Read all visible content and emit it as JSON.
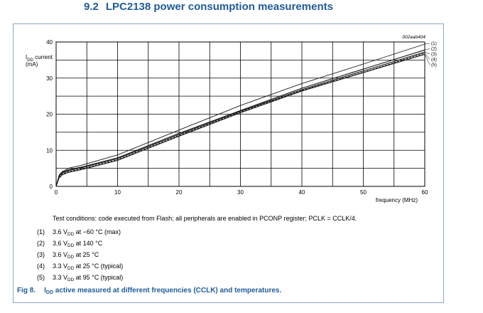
{
  "section": {
    "number": "9.2",
    "title": "LPC2138 power consumption measurements"
  },
  "chart_data": {
    "type": "line",
    "code": "002aab404",
    "ylabel_main": "I",
    "ylabel_sub": "DD",
    "ylabel_rest": " current",
    "ylabel_unit": "(mA)",
    "xlabel": "frequency (MHz)",
    "xlim": [
      0,
      60
    ],
    "ylim": [
      0,
      40
    ],
    "xticks": [
      0,
      10,
      20,
      30,
      40,
      50,
      60
    ],
    "yticks": [
      0,
      10,
      20,
      30,
      40
    ],
    "grid": true,
    "series": [
      {
        "name": "(1)",
        "x": [
          0,
          0.5,
          1,
          2,
          4,
          10,
          20,
          30,
          40,
          50,
          60
        ],
        "values": [
          0,
          3.2,
          4.1,
          5.0,
          5.8,
          8.7,
          15.6,
          22.4,
          28.5,
          33.9,
          39.4
        ]
      },
      {
        "name": "(2)",
        "x": [
          0,
          0.5,
          1,
          2,
          4,
          10,
          20,
          30,
          40,
          50,
          60
        ],
        "values": [
          0,
          3.0,
          3.9,
          4.6,
          5.3,
          7.9,
          14.7,
          21.0,
          27.2,
          32.5,
          37.8
        ]
      },
      {
        "name": "(3)",
        "x": [
          0,
          0.5,
          1,
          2,
          4,
          10,
          20,
          30,
          40,
          50,
          60
        ],
        "values": [
          0,
          2.9,
          3.7,
          4.4,
          5.1,
          7.7,
          14.4,
          20.8,
          26.8,
          32.0,
          37.2
        ]
      },
      {
        "name": "(4)",
        "x": [
          0,
          0.5,
          1,
          2,
          4,
          10,
          20,
          30,
          40,
          50,
          60
        ],
        "values": [
          0,
          2.6,
          3.4,
          4.1,
          4.8,
          7.4,
          14.1,
          20.6,
          26.6,
          31.6,
          36.9
        ]
      },
      {
        "name": "(5)",
        "x": [
          0,
          0.5,
          1,
          2,
          4,
          10,
          20,
          30,
          40,
          50,
          60
        ],
        "values": [
          0,
          2.4,
          3.2,
          3.9,
          4.6,
          7.2,
          13.9,
          20.4,
          26.4,
          31.5,
          36.6
        ]
      }
    ]
  },
  "conditions": "Test conditions: code executed from Flash; all peripherals are enabled in PCONP register; PCLK = CCLK/4.",
  "legend": [
    {
      "id": "(1)",
      "pre": "3.6 V",
      "sub": "DD",
      "post": " at −60 °C (max)"
    },
    {
      "id": "(2)",
      "pre": "3.6 V",
      "sub": "DD",
      "post": " at 140 °C"
    },
    {
      "id": "(3)",
      "pre": "3.6 V",
      "sub": "DD",
      "post": " at 25 °C"
    },
    {
      "id": "(4)",
      "pre": "3.3 V",
      "sub": "DD",
      "post": " at 25 °C (typical)"
    },
    {
      "id": "(5)",
      "pre": "3.3 V",
      "sub": "DD",
      "post": " at 95 °C (typical)"
    }
  ],
  "caption": {
    "fig": "Fig 8.",
    "pre": "I",
    "sub": "DD",
    "post": " active measured at different frequencies (CCLK) and temperatures."
  },
  "colors": {
    "heading": "#1f5c99",
    "frame": "#8aa6c8",
    "curve": "#1a1a1a"
  }
}
